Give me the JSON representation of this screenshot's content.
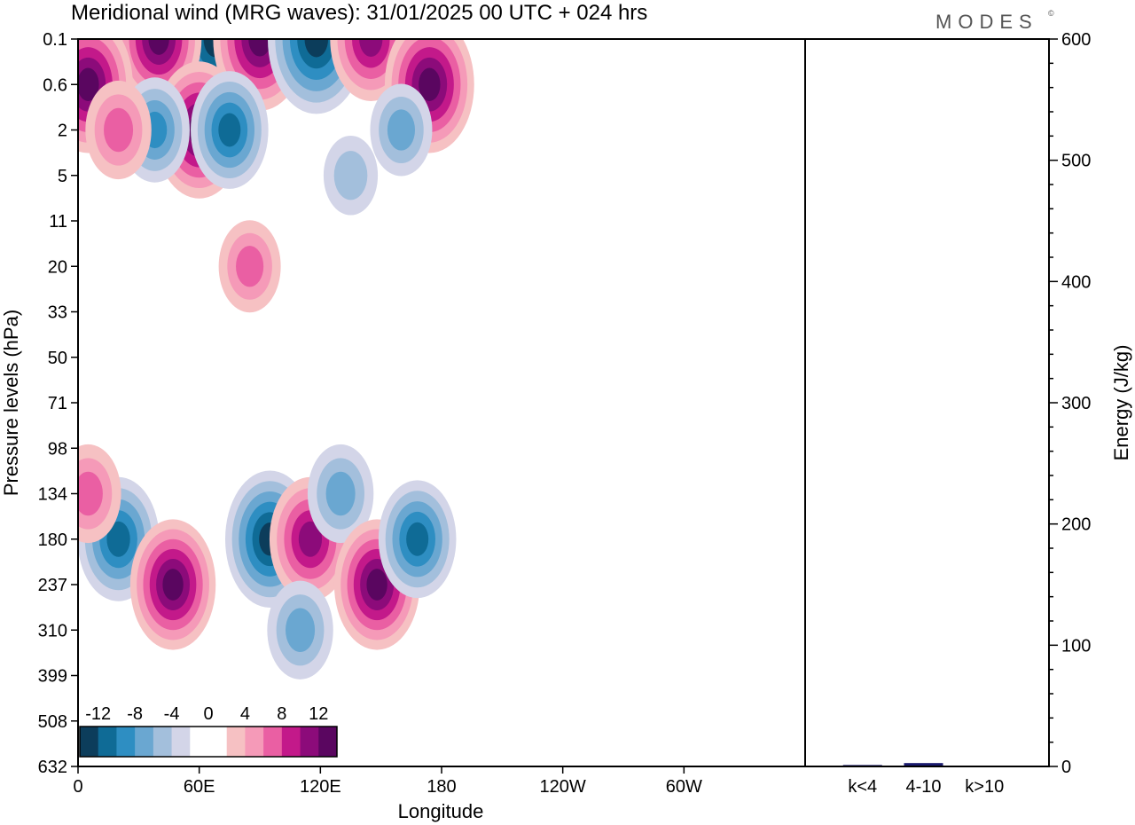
{
  "header": {
    "title": "Meridional wind (MRG waves):  31/01/2025  00 UTC  + 024 hrs",
    "brand": "MODES",
    "brand_mark": "©"
  },
  "chart_data": [
    {
      "type": "heatmap",
      "title": "Meridional wind (MRG waves):  31/01/2025  00 UTC  + 024 hrs",
      "xlabel": "Longitude",
      "ylabel": "Pressure levels (hPa)",
      "x_ticks": [
        "0",
        "60E",
        "120E",
        "180",
        "120W",
        "60W"
      ],
      "x_tick_degrees": [
        0,
        60,
        120,
        180,
        240,
        300
      ],
      "xlim_degrees": [
        0,
        360
      ],
      "y_ticks": [
        "0.1",
        "0.6",
        "2",
        "5",
        "11",
        "20",
        "33",
        "50",
        "71",
        "98",
        "134",
        "180",
        "237",
        "310",
        "399",
        "508",
        "632"
      ],
      "y_scale": "model levels",
      "colorbar": {
        "labels": [
          "-12",
          "-8",
          "-4",
          "0",
          "4",
          "8",
          "12"
        ],
        "colors": [
          "#0c3d5b",
          "#0f6b96",
          "#2e8ec2",
          "#6aa7d1",
          "#a3bfdc",
          "#d3d5e8",
          "#ffffff",
          "#ffffff",
          "#f6c1c3",
          "#f59ab8",
          "#ea5fa3",
          "#c3198a",
          "#8c0b7a",
          "#5a0660"
        ]
      },
      "features": [
        {
          "lon": 68,
          "level": "0.1",
          "value": -14
        },
        {
          "lon": 90,
          "level": "0.1",
          "value": 13
        },
        {
          "lon": 118,
          "level": "0.1",
          "value": -14
        },
        {
          "lon": 15,
          "level": "0.1",
          "value": 9
        },
        {
          "lon": 40,
          "level": "0.1",
          "value": 11
        },
        {
          "lon": 145,
          "level": "0.1",
          "value": 10
        },
        {
          "lon": 5,
          "level": "0.6",
          "value": 12
        },
        {
          "lon": 60,
          "level": "2",
          "value": 12
        },
        {
          "lon": 75,
          "level": "2",
          "value": -9
        },
        {
          "lon": 38,
          "level": "2",
          "value": -7
        },
        {
          "lon": 174,
          "level": "0.6",
          "value": 12
        },
        {
          "lon": 160,
          "level": "2",
          "value": -5
        },
        {
          "lon": 20,
          "level": "2",
          "value": 6
        },
        {
          "lon": 85,
          "level": "20",
          "value": 5
        },
        {
          "lon": 135,
          "level": "5",
          "value": -3
        },
        {
          "lon": 20,
          "level": "180",
          "value": -10
        },
        {
          "lon": 47,
          "level": "237",
          "value": 11
        },
        {
          "lon": 5,
          "level": "134",
          "value": 6
        },
        {
          "lon": 95,
          "level": "180",
          "value": -12
        },
        {
          "lon": 115,
          "level": "180",
          "value": 10
        },
        {
          "lon": 130,
          "level": "134",
          "value": -6
        },
        {
          "lon": 110,
          "level": "310",
          "value": -6
        },
        {
          "lon": 148,
          "level": "237",
          "value": 11
        },
        {
          "lon": 168,
          "level": "180",
          "value": -9
        }
      ]
    },
    {
      "type": "bar",
      "categories": [
        "k<4",
        "4-10",
        "k>10"
      ],
      "values": [
        1.2,
        2.8,
        0.4
      ],
      "ylabel": "Energy (J/kg)",
      "ylim": [
        0,
        600
      ],
      "y_ticks": [
        "0",
        "100",
        "200",
        "300",
        "400",
        "500",
        "600"
      ],
      "bar_color": "#1a1a6e"
    }
  ]
}
